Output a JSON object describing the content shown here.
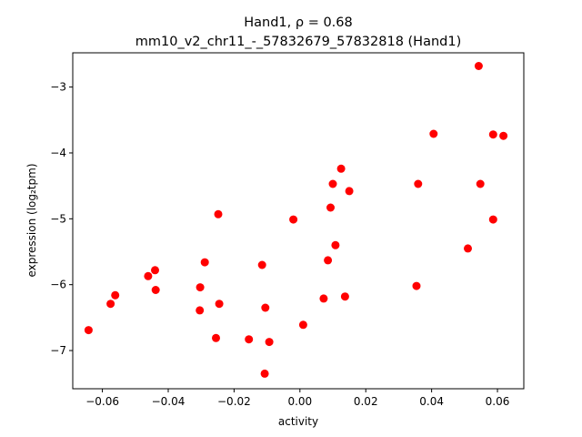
{
  "chart_data": {
    "type": "scatter",
    "title_line1": "Hand1, ρ = 0.68",
    "title_line2": "mm10_v2_chr11_-_57832679_57832818 (Hand1)",
    "xlabel": "activity",
    "ylabel": "expression (log₂tpm)",
    "xlim": [
      -0.069,
      0.068
    ],
    "ylim": [
      -7.58,
      -2.48
    ],
    "x_ticks": [
      -0.06,
      -0.04,
      -0.02,
      0.0,
      0.02,
      0.04,
      0.06
    ],
    "x_tick_labels": [
      "−0.06",
      "−0.04",
      "−0.02",
      "0.00",
      "0.02",
      "0.04",
      "0.06"
    ],
    "y_ticks": [
      -7,
      -6,
      -5,
      -4,
      -3
    ],
    "y_tick_labels": [
      "−7",
      "−6",
      "−5",
      "−4",
      "−3"
    ],
    "grid": false,
    "marker_color": "#ff0000",
    "points": [
      {
        "x": -0.0642,
        "y": -6.69
      },
      {
        "x": -0.0575,
        "y": -6.29
      },
      {
        "x": -0.0561,
        "y": -6.16
      },
      {
        "x": -0.0461,
        "y": -5.87
      },
      {
        "x": -0.044,
        "y": -5.78
      },
      {
        "x": -0.0438,
        "y": -6.08
      },
      {
        "x": -0.0303,
        "y": -6.04
      },
      {
        "x": -0.0304,
        "y": -6.39
      },
      {
        "x": -0.0289,
        "y": -5.66
      },
      {
        "x": -0.0248,
        "y": -4.93
      },
      {
        "x": -0.0245,
        "y": -6.29
      },
      {
        "x": -0.0255,
        "y": -6.81
      },
      {
        "x": -0.0155,
        "y": -6.83
      },
      {
        "x": -0.0115,
        "y": -5.7
      },
      {
        "x": -0.0105,
        "y": -6.35
      },
      {
        "x": -0.0093,
        "y": -6.87
      },
      {
        "x": -0.0107,
        "y": -7.35
      },
      {
        "x": -0.002,
        "y": -5.01
      },
      {
        "x": 0.001,
        "y": -6.61
      },
      {
        "x": 0.0072,
        "y": -6.21
      },
      {
        "x": 0.0085,
        "y": -5.63
      },
      {
        "x": 0.0093,
        "y": -4.83
      },
      {
        "x": 0.01,
        "y": -4.47
      },
      {
        "x": 0.0108,
        "y": -5.4
      },
      {
        "x": 0.0125,
        "y": -4.24
      },
      {
        "x": 0.0137,
        "y": -6.18
      },
      {
        "x": 0.015,
        "y": -4.58
      },
      {
        "x": 0.0354,
        "y": -6.02
      },
      {
        "x": 0.0359,
        "y": -4.47
      },
      {
        "x": 0.0406,
        "y": -3.71
      },
      {
        "x": 0.051,
        "y": -5.45
      },
      {
        "x": 0.0543,
        "y": -2.68
      },
      {
        "x": 0.0548,
        "y": -4.47
      },
      {
        "x": 0.0587,
        "y": -3.72
      },
      {
        "x": 0.0587,
        "y": -5.01
      },
      {
        "x": 0.0618,
        "y": -3.74
      }
    ]
  }
}
